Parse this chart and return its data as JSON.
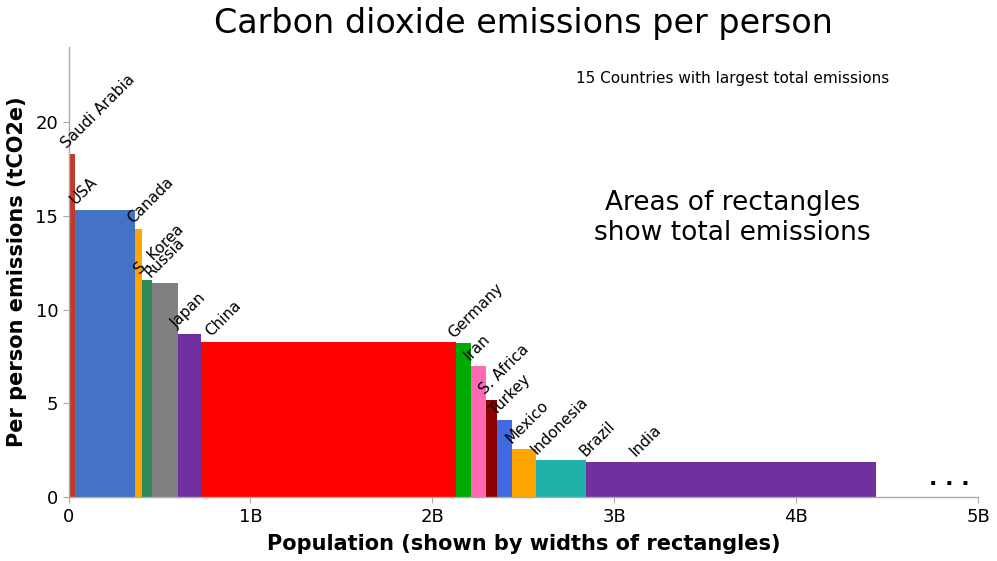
{
  "title": "Carbon dioxide emissions per person",
  "xlabel": "Population (shown by widths of rectangles)",
  "ylabel": "Per person emissions (tCO2e)",
  "annotation": "Areas of rectangles\nshow total emissions",
  "note": "15 Countries with largest total emissions",
  "countries": [
    {
      "name": "Saudi Arabia",
      "population": 35000000,
      "per_person": 18.3,
      "color": "#C0392B"
    },
    {
      "name": "USA",
      "population": 331000000,
      "per_person": 15.3,
      "color": "#4472C4"
    },
    {
      "name": "Canada",
      "population": 38000000,
      "per_person": 14.3,
      "color": "#FFA500"
    },
    {
      "name": "S. Korea",
      "population": 52000000,
      "per_person": 11.6,
      "color": "#2E8B57"
    },
    {
      "name": "Russia",
      "population": 145000000,
      "per_person": 11.4,
      "color": "#808080"
    },
    {
      "name": "Japan",
      "population": 126000000,
      "per_person": 8.7,
      "color": "#7030A0"
    },
    {
      "name": "China",
      "population": 1400000000,
      "per_person": 8.3,
      "color": "#FF0000"
    },
    {
      "name": "Germany",
      "population": 84000000,
      "per_person": 8.2,
      "color": "#00AA00"
    },
    {
      "name": "Iran",
      "population": 85000000,
      "per_person": 7.0,
      "color": "#FF69B4"
    },
    {
      "name": "S. Africa",
      "population": 60000000,
      "per_person": 5.2,
      "color": "#8B0000"
    },
    {
      "name": "Turkey",
      "population": 84000000,
      "per_person": 4.1,
      "color": "#4169E1"
    },
    {
      "name": "Mexico",
      "population": 130000000,
      "per_person": 2.6,
      "color": "#FFA500"
    },
    {
      "name": "Indonesia",
      "population": 273000000,
      "per_person": 2.0,
      "color": "#20B2AA"
    },
    {
      "name": "Brazil",
      "population": 214000000,
      "per_person": 1.9,
      "color": "#7030A0"
    },
    {
      "name": "India",
      "population": 1380000000,
      "per_person": 1.9,
      "color": "#7030A0"
    }
  ],
  "dots": ". . .",
  "xlim": [
    0,
    5000000000
  ],
  "ylim": [
    0,
    24
  ],
  "xticks": [
    0,
    1000000000,
    2000000000,
    3000000000,
    4000000000,
    5000000000
  ],
  "xtick_labels": [
    "0",
    "1B",
    "2B",
    "3B",
    "4B",
    "5B"
  ],
  "yticks": [
    0,
    5,
    10,
    15,
    20
  ],
  "title_fontsize": 24,
  "label_fontsize": 15,
  "tick_fontsize": 13,
  "country_fontsize": 11,
  "annotation_fontsize": 19,
  "note_fontsize": 11,
  "bg_color": "#FFFFFF"
}
